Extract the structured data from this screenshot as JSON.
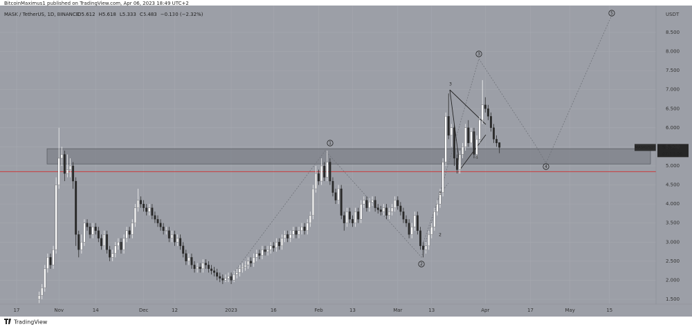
{
  "chart_data": {
    "type": "candlestick",
    "publisher": "BitcoinMaximus1 published on TradingView.com, Apr 06, 2023 18:49 UTC+2",
    "title": "MASK / TetherUS, 1D, BINANCE",
    "ohlc_legend": [
      "O5.612",
      "H5.618",
      "L5.333",
      "C5.483",
      "−0.130 (−2.32%)"
    ],
    "y_axis_label": "USDT",
    "price_badge": {
      "symbol": "MASKUSDT",
      "price": "5.483",
      "countdown": "07:10:06"
    },
    "wave_labels": [
      "1",
      "2",
      "3",
      "4",
      "5"
    ],
    "sub_wave_labels": [
      "1",
      "2",
      "3",
      "4"
    ],
    "footer": "TradingView",
    "support_zone": [
      5.05,
      5.45
    ],
    "support_line": 4.85,
    "xlim": [
      -5.88,
      226.47
    ],
    "ylim": [
      1.373,
      9.207
    ],
    "grid": true,
    "up_color": "#ffffff",
    "down_color": "#2a2a2a",
    "xticks": [
      {
        "value": 0,
        "label": "17"
      },
      {
        "value": 15,
        "label": "Nov"
      },
      {
        "value": 28,
        "label": "14"
      },
      {
        "value": 45,
        "label": "Dec"
      },
      {
        "value": 56,
        "label": "12"
      },
      {
        "value": 76,
        "label": "2023"
      },
      {
        "value": 91,
        "label": "16"
      },
      {
        "value": 107,
        "label": "Feb"
      },
      {
        "value": 119,
        "label": "13"
      },
      {
        "value": 135,
        "label": "Mar"
      },
      {
        "value": 147,
        "label": "13"
      },
      {
        "value": 166,
        "label": "Apr"
      },
      {
        "value": 182,
        "label": "17"
      },
      {
        "value": 196,
        "label": "May"
      },
      {
        "value": 210,
        "label": "15"
      }
    ],
    "yticks": [
      {
        "value": 1.5,
        "label": "1.500"
      },
      {
        "value": 2,
        "label": "2.000"
      },
      {
        "value": 2.5,
        "label": "2.500"
      },
      {
        "value": 3,
        "label": "3.000"
      },
      {
        "value": 3.5,
        "label": "3.500"
      },
      {
        "value": 4,
        "label": "4.000"
      },
      {
        "value": 4.5,
        "label": "4.500"
      },
      {
        "value": 5,
        "label": "5.000"
      },
      {
        "value": 5.5,
        "label": "5.500"
      },
      {
        "value": 6,
        "label": "6.000"
      },
      {
        "value": 6.5,
        "label": "6.500"
      },
      {
        "value": 7,
        "label": "7.000"
      },
      {
        "value": 7.5,
        "label": "7.500"
      },
      {
        "value": 8,
        "label": "8.000"
      },
      {
        "value": 8.5,
        "label": "8.500"
      }
    ],
    "x": [
      8,
      9,
      10,
      11,
      12,
      13,
      14,
      15,
      16,
      17,
      18,
      19,
      20,
      21,
      22,
      23,
      24,
      25,
      26,
      27,
      28,
      29,
      30,
      31,
      32,
      33,
      34,
      35,
      36,
      37,
      38,
      39,
      40,
      41,
      42,
      43,
      44,
      45,
      46,
      47,
      48,
      49,
      50,
      51,
      52,
      53,
      54,
      55,
      56,
      57,
      58,
      59,
      60,
      61,
      62,
      63,
      64,
      65,
      66,
      67,
      68,
      69,
      70,
      71,
      72,
      73,
      74,
      75,
      76,
      77,
      78,
      79,
      80,
      81,
      82,
      83,
      84,
      85,
      86,
      87,
      88,
      89,
      90,
      91,
      92,
      93,
      94,
      95,
      96,
      97,
      98,
      99,
      100,
      101,
      102,
      103,
      104,
      105,
      106,
      107,
      108,
      109,
      110,
      111,
      112,
      113,
      114,
      115,
      116,
      117,
      118,
      119,
      120,
      121,
      122,
      123,
      124,
      125,
      126,
      127,
      128,
      129,
      130,
      131,
      132,
      133,
      134,
      135,
      136,
      137,
      138,
      139,
      140,
      141,
      142,
      143,
      144,
      145,
      146,
      147,
      148,
      149,
      150,
      151,
      152,
      153,
      154,
      155,
      156,
      157,
      158,
      159,
      160,
      161,
      162,
      163,
      164,
      165,
      166,
      167,
      168,
      169,
      170,
      171
    ],
    "open": [
      1.5,
      1.6,
      1.8,
      2.3,
      2.6,
      2.4,
      2.8,
      4.5,
      5.2,
      5.3,
      4.8,
      4.9,
      5.0,
      4.6,
      3.2,
      2.8,
      3.0,
      3.5,
      3.4,
      3.2,
      3.4,
      3.3,
      3.1,
      2.9,
      3.2,
      2.8,
      2.6,
      2.7,
      2.9,
      3.0,
      2.8,
      3.1,
      3.3,
      3.2,
      3.5,
      3.9,
      4.1,
      4.0,
      3.9,
      3.8,
      3.9,
      3.7,
      3.6,
      3.5,
      3.4,
      3.3,
      3.3,
      3.1,
      3.2,
      3.0,
      3.1,
      2.9,
      2.7,
      2.5,
      2.6,
      2.4,
      2.3,
      2.35,
      2.3,
      2.45,
      2.4,
      2.3,
      2.25,
      2.2,
      2.1,
      2.05,
      2.0,
      2.05,
      2.1,
      2.0,
      2.15,
      2.2,
      2.3,
      2.35,
      2.4,
      2.5,
      2.45,
      2.6,
      2.7,
      2.65,
      2.8,
      2.75,
      2.8,
      2.9,
      2.85,
      3.0,
      2.9,
      3.1,
      3.2,
      3.1,
      3.2,
      3.3,
      3.2,
      3.3,
      3.4,
      3.3,
      3.5,
      3.7,
      4.4,
      4.8,
      4.6,
      5.0,
      4.7,
      5.1,
      4.6,
      4.3,
      4.1,
      4.4,
      3.7,
      3.5,
      3.8,
      3.6,
      3.5,
      3.8,
      3.6,
      4.0,
      4.1,
      3.9,
      4.05,
      4.1,
      3.9,
      3.85,
      3.8,
      3.9,
      3.7,
      3.8,
      3.9,
      4.1,
      3.95,
      3.8,
      3.6,
      3.5,
      3.2,
      3.4,
      3.7,
      3.3,
      2.9,
      2.8,
      2.9,
      3.2,
      3.4,
      3.8,
      4.0,
      4.3,
      5.1,
      6.3,
      5.8,
      6.0,
      5.2,
      4.9,
      5.3,
      5.5,
      6.0,
      5.6,
      5.9,
      5.3,
      5.7,
      6.2,
      6.6,
      6.5,
      6.3,
      6.0,
      5.7,
      5.612
    ],
    "high": [
      1.7,
      1.9,
      2.4,
      2.7,
      2.7,
      2.9,
      4.7,
      6.0,
      5.5,
      5.4,
      5.3,
      5.2,
      5.1,
      4.7,
      3.3,
      3.2,
      3.6,
      3.6,
      3.5,
      3.5,
      3.5,
      3.4,
      3.2,
      3.3,
      3.3,
      2.9,
      2.8,
      3.0,
      3.1,
      3.1,
      3.2,
      3.4,
      3.4,
      3.6,
      4.0,
      4.4,
      4.2,
      4.1,
      4.0,
      4.0,
      4.0,
      3.8,
      3.7,
      3.6,
      3.5,
      3.4,
      3.4,
      3.3,
      3.3,
      3.2,
      3.2,
      3.0,
      2.8,
      2.7,
      2.7,
      2.5,
      2.45,
      2.45,
      2.55,
      2.55,
      2.5,
      2.4,
      2.35,
      2.3,
      2.2,
      2.15,
      2.15,
      2.2,
      2.2,
      2.25,
      2.3,
      2.4,
      2.45,
      2.5,
      2.6,
      2.6,
      2.7,
      2.8,
      2.8,
      2.9,
      2.9,
      2.9,
      3.0,
      3.0,
      3.1,
      3.1,
      3.2,
      3.3,
      3.3,
      3.3,
      3.4,
      3.4,
      3.4,
      3.5,
      3.5,
      3.6,
      3.8,
      4.5,
      5.0,
      4.9,
      5.2,
      5.1,
      5.4,
      5.2,
      4.7,
      4.4,
      4.5,
      4.5,
      3.8,
      3.9,
      3.9,
      3.7,
      3.9,
      3.9,
      4.1,
      4.2,
      4.2,
      4.15,
      4.2,
      4.2,
      4.0,
      3.95,
      4.0,
      4.0,
      3.9,
      4.0,
      4.2,
      4.2,
      4.05,
      3.9,
      3.7,
      3.6,
      3.5,
      3.8,
      3.8,
      3.4,
      3.0,
      3.0,
      3.3,
      3.5,
      3.9,
      4.1,
      4.4,
      5.2,
      6.4,
      6.9,
      6.1,
      6.1,
      5.3,
      5.4,
      5.6,
      6.1,
      6.2,
      6.0,
      6.0,
      5.8,
      6.3,
      7.25,
      6.8,
      6.6,
      6.4,
      6.1,
      5.8,
      5.618
    ],
    "low": [
      1.4,
      1.5,
      1.7,
      2.2,
      2.3,
      2.3,
      2.7,
      4.4,
      5.0,
      4.6,
      4.7,
      4.7,
      4.4,
      2.9,
      2.6,
      2.7,
      2.9,
      3.3,
      3.1,
      3.1,
      3.2,
      3.0,
      2.8,
      2.8,
      2.7,
      2.5,
      2.5,
      2.6,
      2.8,
      2.7,
      2.7,
      3.0,
      3.1,
      3.1,
      3.4,
      3.8,
      3.9,
      3.8,
      3.7,
      3.7,
      3.6,
      3.5,
      3.4,
      3.3,
      3.2,
      3.2,
      3.0,
      3.0,
      2.9,
      2.9,
      2.8,
      2.6,
      2.4,
      2.4,
      2.3,
      2.2,
      2.2,
      2.2,
      2.2,
      2.3,
      2.2,
      2.15,
      2.1,
      2.0,
      1.95,
      1.9,
      1.95,
      1.95,
      1.9,
      1.95,
      2.05,
      2.1,
      2.2,
      2.25,
      2.3,
      2.35,
      2.35,
      2.5,
      2.55,
      2.55,
      2.65,
      2.65,
      2.7,
      2.75,
      2.75,
      2.8,
      2.8,
      3.0,
      3.0,
      3.0,
      3.1,
      3.1,
      3.1,
      3.2,
      3.2,
      3.2,
      3.4,
      3.6,
      4.3,
      4.5,
      4.5,
      4.6,
      4.6,
      4.5,
      4.2,
      4.0,
      4.0,
      3.6,
      3.3,
      3.4,
      3.5,
      3.4,
      3.4,
      3.5,
      3.5,
      3.9,
      3.8,
      3.8,
      3.95,
      3.8,
      3.75,
      3.7,
      3.7,
      3.6,
      3.6,
      3.7,
      3.8,
      3.85,
      3.7,
      3.5,
      3.4,
      3.1,
      3.1,
      3.3,
      3.2,
      2.8,
      2.6,
      2.7,
      2.8,
      3.1,
      3.3,
      3.7,
      3.9,
      4.2,
      5.0,
      5.7,
      5.5,
      5.0,
      4.8,
      4.8,
      5.2,
      5.4,
      5.5,
      5.5,
      5.2,
      5.2,
      5.6,
      6.1,
      6.4,
      6.2,
      5.9,
      5.6,
      5.5,
      5.333
    ],
    "close": [
      1.6,
      1.8,
      2.3,
      2.6,
      2.4,
      2.8,
      4.5,
      5.2,
      5.3,
      4.8,
      4.9,
      5.0,
      4.6,
      3.2,
      2.8,
      3.0,
      3.5,
      3.4,
      3.2,
      3.4,
      3.3,
      3.1,
      2.9,
      3.2,
      2.8,
      2.6,
      2.7,
      2.9,
      3.0,
      2.8,
      3.1,
      3.3,
      3.2,
      3.5,
      3.9,
      4.1,
      4.0,
      3.9,
      3.8,
      3.9,
      3.7,
      3.6,
      3.5,
      3.4,
      3.3,
      3.3,
      3.1,
      3.2,
      3.0,
      3.1,
      2.9,
      2.7,
      2.5,
      2.6,
      2.4,
      2.3,
      2.35,
      2.3,
      2.45,
      2.4,
      2.3,
      2.25,
      2.2,
      2.1,
      2.05,
      2.0,
      2.05,
      2.1,
      2.0,
      2.15,
      2.2,
      2.3,
      2.35,
      2.4,
      2.5,
      2.45,
      2.6,
      2.7,
      2.65,
      2.8,
      2.75,
      2.8,
      2.9,
      2.85,
      3.0,
      2.9,
      3.1,
      3.2,
      3.1,
      3.2,
      3.3,
      3.2,
      3.3,
      3.4,
      3.3,
      3.5,
      3.7,
      4.4,
      4.8,
      4.6,
      5.0,
      4.7,
      5.1,
      4.6,
      4.3,
      4.1,
      4.4,
      3.7,
      3.5,
      3.8,
      3.6,
      3.5,
      3.8,
      3.6,
      4.0,
      4.1,
      3.9,
      4.05,
      4.1,
      3.9,
      3.85,
      3.8,
      3.9,
      3.7,
      3.8,
      3.9,
      4.1,
      3.95,
      3.8,
      3.6,
      3.5,
      3.2,
      3.4,
      3.7,
      3.3,
      2.9,
      2.8,
      2.9,
      3.2,
      3.4,
      3.8,
      4.0,
      4.3,
      5.1,
      6.3,
      5.8,
      6.0,
      5.2,
      4.9,
      5.3,
      5.5,
      6.0,
      5.6,
      5.9,
      5.3,
      5.7,
      6.2,
      6.6,
      6.5,
      6.3,
      6.0,
      5.7,
      5.6,
      5.483
    ]
  }
}
